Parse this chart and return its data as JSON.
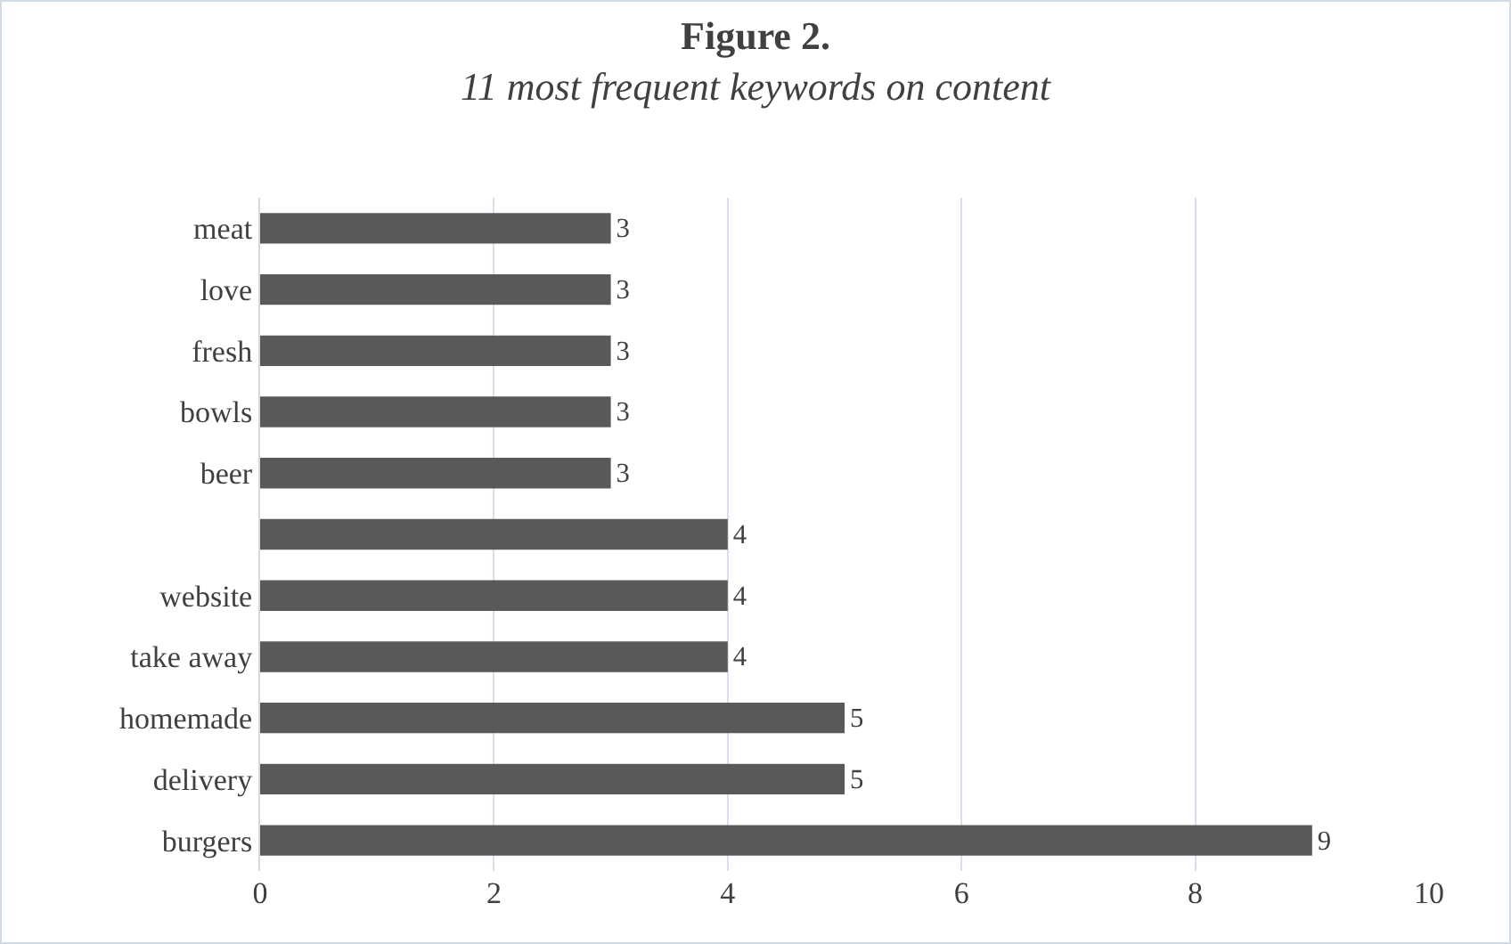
{
  "chart_data": {
    "type": "bar",
    "orientation": "horizontal",
    "title": "Figure 2.",
    "subtitle": "11 most frequent keywords on content",
    "categories": [
      "meat",
      "love",
      "fresh",
      "bowls",
      "beer",
      null,
      "website",
      "take away",
      "homemade",
      "delivery",
      "burgers"
    ],
    "values": [
      3,
      3,
      3,
      3,
      3,
      4,
      4,
      4,
      5,
      5,
      9
    ],
    "color": "#595959",
    "xlim": [
      0,
      10
    ],
    "xticks": [
      0,
      2,
      4,
      6,
      8,
      10
    ],
    "grid": "x",
    "data_labels": true,
    "legend": false
  }
}
